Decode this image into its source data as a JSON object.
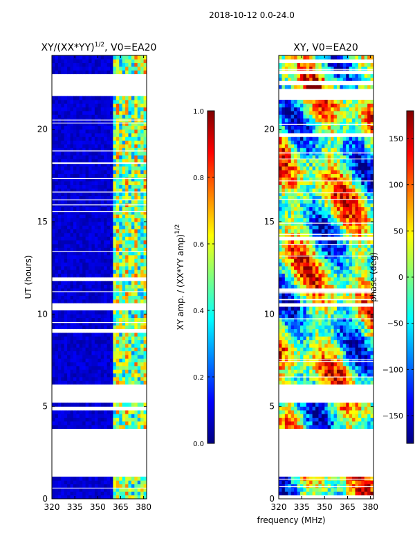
{
  "figure": {
    "suptitle": "2018-10-12 0.0-24.0",
    "shared_xlabel": "frequency (MHz)"
  },
  "colors": {
    "jet_stops": [
      "#00007f",
      "#0000ff",
      "#007fff",
      "#00ffff",
      "#7fff7f",
      "#ffff00",
      "#ff7f00",
      "#ff0000",
      "#7f0000"
    ]
  },
  "chart_data": [
    {
      "type": "heatmap",
      "title": "XY/(XX*YY)^1/2, V0=EA20",
      "title_main": "XY/(XX*YY)",
      "title_sup": "1/2",
      "title_rest": ", V0=EA20",
      "xlabel": "",
      "ylabel": "UT (hours)",
      "xlim": [
        320,
        382
      ],
      "ylim": [
        0,
        24
      ],
      "xticks": [
        320,
        335,
        350,
        365,
        380
      ],
      "yticks": [
        0,
        5,
        10,
        15,
        20
      ],
      "quantity": "normalized XY amplitude",
      "colorbar": {
        "label": "XY amp. / (XX*YY amp)^1/2",
        "label_main": "XY amp. / (XX*YY amp)",
        "label_sup": "1/2",
        "range": [
          0.0,
          1.0
        ],
        "ticks": [
          0.0,
          0.2,
          0.4,
          0.6,
          0.8,
          1.0
        ],
        "tick_labels": [
          "0.0",
          "0.2",
          "0.4",
          "0.6",
          "0.8",
          "1.0"
        ]
      },
      "data_gaps_hours": [
        [
          1.1,
          3.9
        ],
        [
          5.2,
          6.2
        ],
        [
          10.2,
          10.6
        ],
        [
          21.8,
          23.0
        ]
      ],
      "value_bands": [
        {
          "freq_range": [
            320,
            360
          ],
          "typical_value": 0.08
        },
        {
          "freq_range": [
            360,
            382
          ],
          "typical_value": 0.45
        }
      ]
    },
    {
      "type": "heatmap",
      "title": "XY, V0=EA20",
      "xlabel": "",
      "ylabel": "",
      "xlim": [
        320,
        382
      ],
      "ylim": [
        0,
        24
      ],
      "xticks": [
        320,
        335,
        350,
        365,
        380
      ],
      "yticks": [
        0,
        5,
        10,
        15,
        20
      ],
      "quantity": "XY phase",
      "colorbar": {
        "label": "phase (deg)",
        "range": [
          -180,
          180
        ],
        "ticks": [
          -150,
          -100,
          -50,
          0,
          50,
          100,
          150
        ],
        "tick_labels": [
          "−150",
          "−100",
          "−50",
          "0",
          "50",
          "100",
          "150"
        ]
      },
      "data_gaps_hours": [
        [
          1.1,
          3.9
        ],
        [
          5.2,
          6.2
        ],
        [
          10.4,
          10.5
        ],
        [
          21.6,
          22.2
        ]
      ]
    }
  ]
}
